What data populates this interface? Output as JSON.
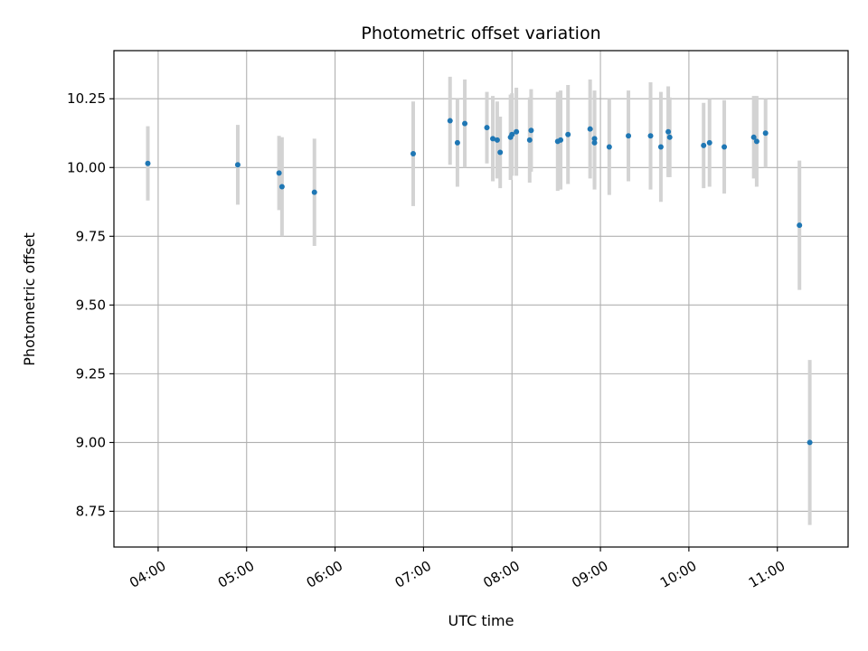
{
  "chart_data": {
    "type": "scatter",
    "title": "Photometric offset variation",
    "xlabel": "UTC time",
    "ylabel": "Photometric offset",
    "xlim": [
      "03:30",
      "11:48"
    ],
    "ylim": [
      8.62,
      10.425
    ],
    "x_ticks": [
      "04:00",
      "05:00",
      "06:00",
      "07:00",
      "08:00",
      "09:00",
      "10:00",
      "11:00"
    ],
    "y_ticks": [
      "8.75",
      "9.00",
      "9.25",
      "9.50",
      "9.75",
      "10.00",
      "10.25"
    ],
    "grid": true,
    "point_color": "#1f77b4",
    "errorbar_color": "#d3d3d3",
    "points": [
      {
        "x": "03:53",
        "y": 10.015,
        "err": 0.135
      },
      {
        "x": "04:54",
        "y": 10.01,
        "err": 0.145
      },
      {
        "x": "05:22",
        "y": 9.98,
        "err": 0.135
      },
      {
        "x": "05:24",
        "y": 9.93,
        "err": 0.18
      },
      {
        "x": "05:46",
        "y": 9.91,
        "err": 0.195
      },
      {
        "x": "06:53",
        "y": 10.05,
        "err": 0.19
      },
      {
        "x": "07:18",
        "y": 10.17,
        "err": 0.16
      },
      {
        "x": "07:23",
        "y": 10.09,
        "err": 0.16
      },
      {
        "x": "07:28",
        "y": 10.16,
        "err": 0.16
      },
      {
        "x": "07:43",
        "y": 10.145,
        "err": 0.13
      },
      {
        "x": "07:47",
        "y": 10.105,
        "err": 0.155
      },
      {
        "x": "07:50",
        "y": 10.1,
        "err": 0.14
      },
      {
        "x": "07:52",
        "y": 10.055,
        "err": 0.13
      },
      {
        "x": "07:59",
        "y": 10.11,
        "err": 0.155
      },
      {
        "x": "08:00",
        "y": 10.12,
        "err": 0.15
      },
      {
        "x": "08:03",
        "y": 10.13,
        "err": 0.16
      },
      {
        "x": "08:12",
        "y": 10.1,
        "err": 0.155
      },
      {
        "x": "08:13",
        "y": 10.135,
        "err": 0.15
      },
      {
        "x": "08:31",
        "y": 10.095,
        "err": 0.18
      },
      {
        "x": "08:33",
        "y": 10.1,
        "err": 0.18
      },
      {
        "x": "08:38",
        "y": 10.12,
        "err": 0.18
      },
      {
        "x": "08:53",
        "y": 10.14,
        "err": 0.18
      },
      {
        "x": "08:56",
        "y": 10.105,
        "err": 0.175
      },
      {
        "x": "08:56",
        "y": 10.09,
        "err": 0.17
      },
      {
        "x": "09:06",
        "y": 10.075,
        "err": 0.175
      },
      {
        "x": "09:19",
        "y": 10.115,
        "err": 0.165
      },
      {
        "x": "09:34",
        "y": 10.115,
        "err": 0.195
      },
      {
        "x": "09:41",
        "y": 10.075,
        "err": 0.2
      },
      {
        "x": "09:46",
        "y": 10.13,
        "err": 0.165
      },
      {
        "x": "09:47",
        "y": 10.11,
        "err": 0.145
      },
      {
        "x": "10:10",
        "y": 10.08,
        "err": 0.155
      },
      {
        "x": "10:14",
        "y": 10.09,
        "err": 0.16
      },
      {
        "x": "10:24",
        "y": 10.075,
        "err": 0.17
      },
      {
        "x": "10:44",
        "y": 10.11,
        "err": 0.15
      },
      {
        "x": "10:46",
        "y": 10.095,
        "err": 0.165
      },
      {
        "x": "10:52",
        "y": 10.125,
        "err": 0.125
      },
      {
        "x": "11:15",
        "y": 9.79,
        "err": 0.235
      },
      {
        "x": "11:22",
        "y": 9.0,
        "err": 0.3
      }
    ]
  }
}
